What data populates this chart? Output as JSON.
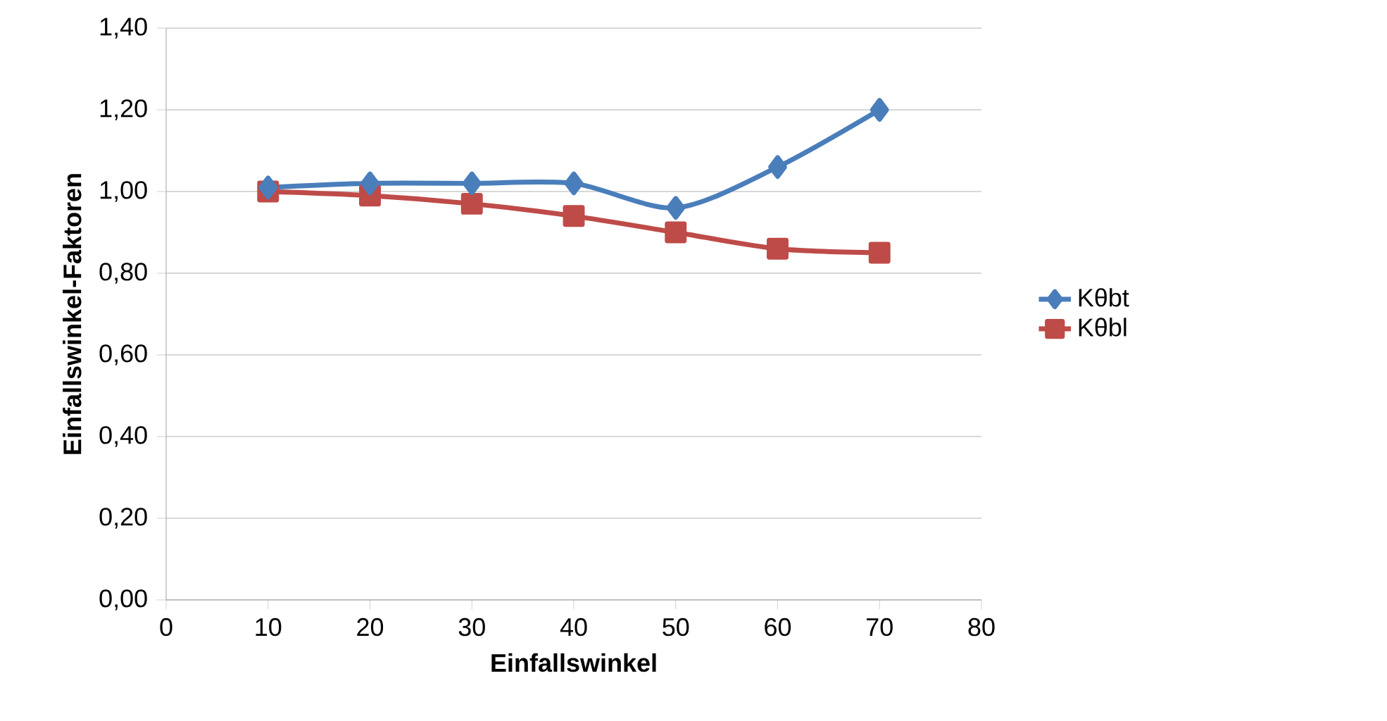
{
  "chart_data": {
    "type": "line",
    "xlabel": "Einfallswinkel",
    "ylabel": "Einfallswinkel-Faktoren",
    "x": [
      10,
      20,
      30,
      40,
      50,
      60,
      70
    ],
    "series": [
      {
        "name": "Kθbt",
        "color": "#4a7ebb",
        "marker": "diamond",
        "values": [
          1.01,
          1.02,
          1.02,
          1.02,
          0.96,
          1.06,
          1.2
        ]
      },
      {
        "name": "Kθbl",
        "color": "#be4b48",
        "marker": "square",
        "values": [
          1.0,
          0.99,
          0.97,
          0.94,
          0.9,
          0.86,
          0.85
        ]
      }
    ],
    "xlim": [
      0,
      80
    ],
    "xticks": [
      0,
      10,
      20,
      30,
      40,
      50,
      60,
      70,
      80
    ],
    "ylim": [
      0,
      1.4
    ],
    "yticks": [
      {
        "value": 0,
        "label": "0,00"
      },
      {
        "value": 0.2,
        "label": "0,20"
      },
      {
        "value": 0.4,
        "label": "0,40"
      },
      {
        "value": 0.6,
        "label": "0,60"
      },
      {
        "value": 0.8,
        "label": "0,80"
      },
      {
        "value": 1.0,
        "label": "1,00"
      },
      {
        "value": 1.2,
        "label": "1,20"
      },
      {
        "value": 1.4,
        "label": "1,40"
      }
    ],
    "grid": "y",
    "legend": "right",
    "line_style": "solid"
  }
}
